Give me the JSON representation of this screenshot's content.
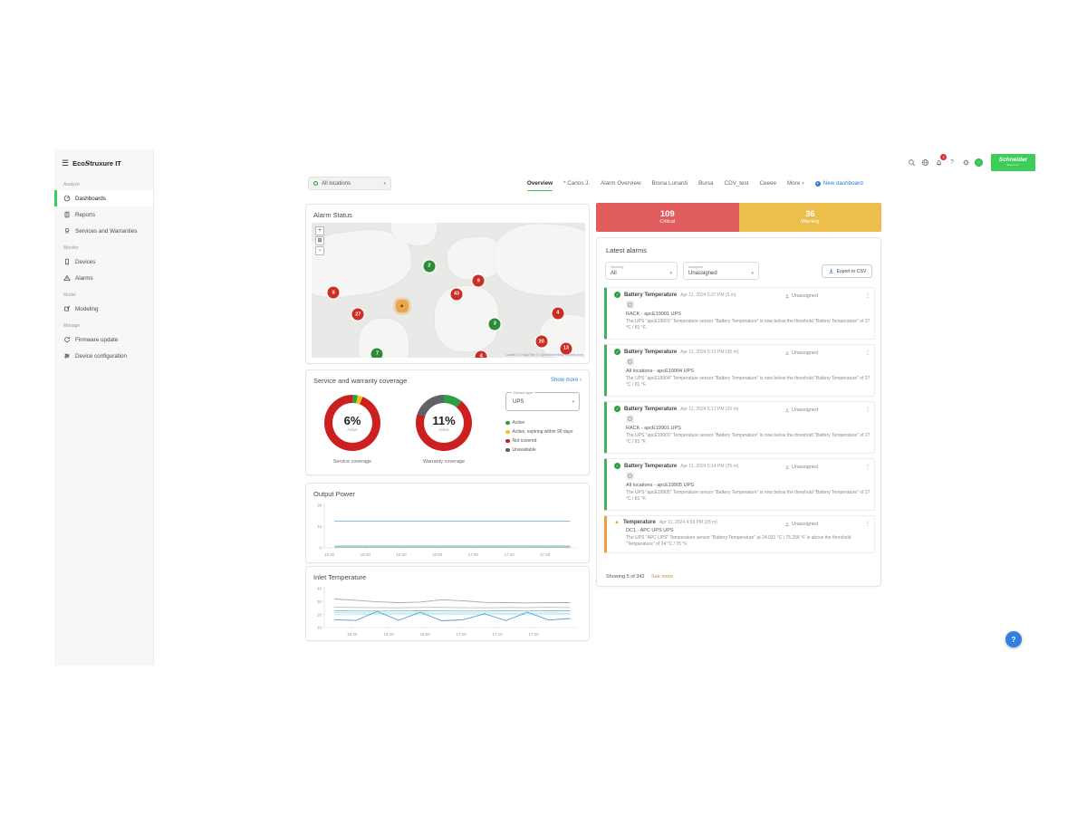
{
  "sidebar": {
    "logo": {
      "pre": "Eco",
      "s": "S",
      "post": "truxure IT"
    },
    "groups": [
      {
        "label": "Analyze",
        "items": [
          {
            "icon": "gauge-icon",
            "label": "Dashboards",
            "active": true
          },
          {
            "icon": "report-icon",
            "label": "Reports",
            "active": false
          },
          {
            "icon": "award-icon",
            "label": "Services and Warranties",
            "active": false
          }
        ]
      },
      {
        "label": "Monitor",
        "items": [
          {
            "icon": "device-icon",
            "label": "Devices",
            "active": false
          },
          {
            "icon": "alarm-triangle-icon",
            "label": "Alarms",
            "active": false
          }
        ]
      },
      {
        "label": "Model",
        "items": [
          {
            "icon": "modeling-icon",
            "label": "Modeling",
            "active": false
          }
        ]
      },
      {
        "label": "Manage",
        "items": [
          {
            "icon": "firmware-update-icon",
            "label": "Firmware update",
            "active": false
          },
          {
            "icon": "device-config-icon",
            "label": "Device configuration",
            "active": false
          }
        ]
      }
    ]
  },
  "topbar": {
    "notification_count": "4",
    "brand": {
      "line1": "Schneider",
      "line2": "Electric"
    }
  },
  "location_selector": {
    "value": "All locations"
  },
  "tabs": {
    "items": [
      "Overview",
      "* Carlos J.",
      "Alarm Overview",
      "Bruna Lunardi",
      "Bursa",
      "CDV_test",
      "Ceeee",
      "More"
    ],
    "new_dashboard": "New dashboard"
  },
  "alarm_status": {
    "title": "Alarm Status",
    "zoom_controls": [
      "+",
      "⊞",
      "−"
    ],
    "attribution": "Leaflet | © MapTiler © OpenStreetMap contributors",
    "markers": [
      {
        "count": "2",
        "severity": "normal",
        "x": 43,
        "y": 32
      },
      {
        "count": "9",
        "severity": "critical",
        "x": 61,
        "y": 43
      },
      {
        "count": "43",
        "severity": "critical",
        "x": 53,
        "y": 53
      },
      {
        "count": "8",
        "severity": "critical",
        "x": 8,
        "y": 52
      },
      {
        "count": "",
        "severity": "warning",
        "x": 33,
        "y": 62
      },
      {
        "count": "27",
        "severity": "critical",
        "x": 17,
        "y": 68
      },
      {
        "count": "3",
        "severity": "normal",
        "x": 67,
        "y": 75
      },
      {
        "count": "4",
        "severity": "critical",
        "x": 90,
        "y": 67
      },
      {
        "count": "20",
        "severity": "critical",
        "x": 84,
        "y": 88
      },
      {
        "count": "13",
        "severity": "critical",
        "x": 93,
        "y": 93
      },
      {
        "count": "7",
        "severity": "normal",
        "x": 24,
        "y": 97
      },
      {
        "count": "4",
        "severity": "critical",
        "x": 62,
        "y": 99
      }
    ]
  },
  "summary": {
    "critical": {
      "count": "109",
      "label": "Critical",
      "color": "#e15d5d"
    },
    "warning": {
      "count": "36",
      "label": "Warning",
      "color": "#ecbf4d"
    }
  },
  "coverage": {
    "title": "Service and warranty coverage",
    "show_more": "Show more ›",
    "device_type": {
      "label": "Device type",
      "value": "UPS"
    },
    "legend": [
      {
        "label": "Active",
        "color": "#2e9e44"
      },
      {
        "label": "Active, expiring within 90 days",
        "color": "#f2c224"
      },
      {
        "label": "Not covered",
        "color": "#cc1f1f"
      },
      {
        "label": "Unavailable",
        "color": "#5f6368"
      }
    ],
    "donuts": [
      {
        "value": "6%",
        "sublabel": "Active",
        "label": "Service coverage",
        "segments": [
          {
            "color": "#2e9e44",
            "pct": 3
          },
          {
            "color": "#f2c224",
            "pct": 3
          },
          {
            "color": "#cc1f1f",
            "pct": 94
          }
        ]
      },
      {
        "value": "11%",
        "sublabel": "Active",
        "label": "Warranty coverage",
        "segments": [
          {
            "color": "#2e9e44",
            "pct": 11
          },
          {
            "color": "#cc1f1f",
            "pct": 69
          },
          {
            "color": "#5f6368",
            "pct": 20
          }
        ]
      }
    ]
  },
  "latest_alarms": {
    "title": "Latest alarms",
    "filters": {
      "severity": {
        "label": "Severity",
        "value": "All"
      },
      "assignee": {
        "label": "Assignee",
        "value": "Unassigned"
      }
    },
    "export_label": "Export to CSV",
    "entries": [
      {
        "severity": "ok",
        "title": "Battery Temperature",
        "time": "Apr 11, 2024 5:27 PM (5 m)",
        "assignee": "Unassigned",
        "device": "RACK - apcE19001 UPS",
        "message": "The UPS \"apcE19001\" Temperature sensor \"Battery Temperature\" is now below the threshold \"Battery Temperature\" of 27 °C / 81 °F."
      },
      {
        "severity": "ok",
        "title": "Battery Temperature",
        "time": "Apr 11, 2024 5:21 PM (35 m)",
        "assignee": "Unassigned",
        "device": "All locations - apcE19904 UPS",
        "message": "The UPS \"apcE19904\" Temperature sensor \"Battery Temperature\" is now below the threshold \"Battery Temperature\" of 27 °C / 81 °F."
      },
      {
        "severity": "ok",
        "title": "Battery Temperature",
        "time": "Apr 11, 2024 5:17 PM (25 m)",
        "assignee": "Unassigned",
        "device": "RACK - apcE19901 UPS",
        "message": "The UPS \"apcE19901\" Temperature sensor \"Battery Temperature\" is now below the threshold \"Battery Temperature\" of 27 °C / 81 °F."
      },
      {
        "severity": "ok",
        "title": "Battery Temperature",
        "time": "Apr 11, 2024 5:14 PM (25 m)",
        "assignee": "Unassigned",
        "device": "All locations - apcE19905 UPS",
        "message": "The UPS \"apcE19905\" Temperature sensor \"Battery Temperature\" is now below the threshold \"Battery Temperature\" of 27 °C / 81 °F."
      },
      {
        "severity": "warning",
        "title": "Temperature",
        "time": "Apr 11, 2024 4:59 PM (28 m)",
        "assignee": "Unassigned",
        "device": "DC1 - APC UPS UPS",
        "message": "The UPS \"APC UPS\" Temperature sensor \"Battery Temperature\" at 24.031 °C / 75.256 °F is above the threshold \"Temperature\" of 24 °C / 75 °F."
      }
    ],
    "footer": {
      "showing": "Showing 5 of 342",
      "see_more": "See more"
    }
  },
  "fab_glyph": "?",
  "chart_data": [
    {
      "type": "line",
      "title": "Output Power",
      "x_ticks": [
        "16:20",
        "16:30",
        "16:40",
        "16:50",
        "17:00",
        "17:10",
        "17:20"
      ],
      "y_ticks": [
        "0",
        "1k",
        "2k"
      ],
      "ylim": [
        0,
        2000
      ],
      "tick_start": 0.02,
      "tick_step": 0.1417,
      "grid": false,
      "legend": "none",
      "series": [
        {
          "name": "ups-high",
          "color": "#7fb3d3",
          "values": [
            1260,
            1260,
            1258,
            1260,
            1261,
            1260,
            1259,
            1260,
            1260,
            1260
          ]
        },
        {
          "name": "ups-low-1",
          "color": "#7fc8a0",
          "values": [
            90,
            90,
            88,
            91,
            90,
            89,
            90,
            92,
            90,
            90
          ]
        },
        {
          "name": "ups-low-2",
          "color": "#9ad0c8",
          "values": [
            42,
            41,
            42,
            42,
            41,
            42,
            42,
            41,
            42,
            42
          ]
        },
        {
          "name": "ups-low-3",
          "color": "#bcbcbc",
          "values": [
            15,
            15,
            15,
            15,
            15,
            15,
            15,
            15,
            15,
            15
          ]
        }
      ]
    },
    {
      "type": "line",
      "title": "Inlet Temperature",
      "x_ticks": [
        "16:30",
        "16:40",
        "16:50",
        "17:00",
        "17:10",
        "17:20"
      ],
      "y_ticks": [
        "10",
        "20",
        "30",
        "40"
      ],
      "ylim": [
        10,
        40
      ],
      "tick_start": 0.11,
      "tick_step": 0.143,
      "grid": false,
      "legend": "none",
      "series": [
        {
          "name": "sensor-1",
          "color": "#aca4b4",
          "values": [
            32,
            31,
            29.8,
            29.2,
            29.6,
            31.4,
            30.6,
            29.4,
            29.2,
            29.0,
            29.2,
            29.2
          ]
        },
        {
          "name": "sensor-2",
          "color": "#bdbdc6",
          "values": [
            25.8,
            25.5,
            25.3,
            25.2,
            25.5,
            25.6,
            25.3,
            25.2,
            25.5,
            25.3,
            25.6,
            25.4
          ]
        },
        {
          "name": "sensor-3",
          "color": "#6fbfc4",
          "values": [
            23.0,
            22.8,
            22.7,
            22.8,
            22.9,
            22.8,
            22.7,
            22.8,
            22.9,
            22.8,
            23.0,
            22.9
          ]
        },
        {
          "name": "sensor-4",
          "color": "#9fd8dc",
          "values": [
            21.3,
            21.2,
            21.0,
            21.1,
            21.2,
            21.0,
            21.1,
            21.2,
            21.0,
            21.1,
            21.2,
            21.0
          ]
        },
        {
          "name": "sensor-5",
          "color": "#c7e6e9",
          "values": [
            19.8,
            19.9,
            20.0,
            19.9,
            20.0,
            19.9,
            20.0,
            19.9,
            20.0,
            19.9,
            20.0,
            19.9
          ]
        },
        {
          "name": "sensor-6",
          "color": "#5b9bd5",
          "values": [
            16.0,
            15.5,
            22.4,
            15.6,
            21.8,
            15.2,
            16.0,
            20.6,
            15.4,
            21.8,
            15.8,
            17.0
          ]
        }
      ]
    }
  ]
}
